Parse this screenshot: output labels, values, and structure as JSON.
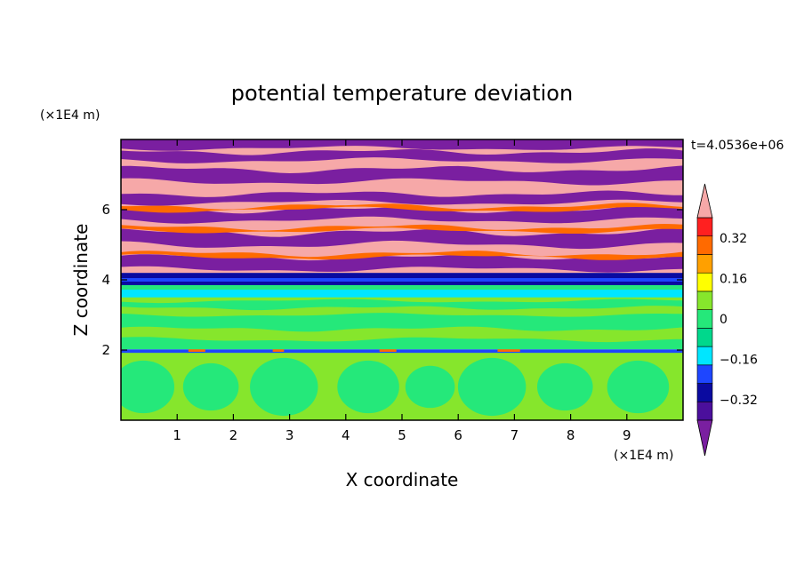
{
  "chart_data": {
    "type": "heatmap",
    "title": "potential temperature deviation",
    "xlabel": "X coordinate",
    "ylabel": "Z coordinate",
    "x_unit": "(×1E4 m)",
    "y_unit": "(×1E4 m)",
    "time_label": "t=4.0536e+06",
    "xlim": [
      0,
      10
    ],
    "ylim": [
      0,
      8
    ],
    "x_ticks": [
      1,
      2,
      3,
      4,
      5,
      6,
      7,
      8,
      9
    ],
    "y_ticks": [
      2,
      4,
      6
    ],
    "colorbar": {
      "levels": [
        -0.48,
        -0.4,
        -0.32,
        -0.24,
        -0.16,
        -0.08,
        0,
        0.08,
        0.16,
        0.24,
        0.32,
        0.4,
        0.48
      ],
      "tick_labels": [
        "0.32",
        "0.16",
        "0",
        "−0.16",
        "−0.32"
      ],
      "tick_values": [
        0.32,
        0.16,
        0,
        -0.16,
        -0.32
      ],
      "colors": [
        "#7a1fa0",
        "#4b0f9c",
        "#0a0aa0",
        "#1e46ff",
        "#00e6ff",
        "#00d88c",
        "#25e87a",
        "#86e62c",
        "#ffff00",
        "#ffa000",
        "#ff6a00",
        "#ff2020",
        "#f6a8a8"
      ]
    },
    "bands": [
      {
        "z0": 0,
        "z1": 1.9,
        "value": 0.04
      },
      {
        "z0": 1.9,
        "z1": 2.1,
        "value": -0.08
      },
      {
        "z0": 2.1,
        "z1": 3.9,
        "value": -0.04
      },
      {
        "z0": 3.9,
        "z1": 4.2,
        "value": -0.4
      },
      {
        "z0": 4.2,
        "z1": 8,
        "value": "alternating 0.48 / -0.48"
      }
    ]
  }
}
